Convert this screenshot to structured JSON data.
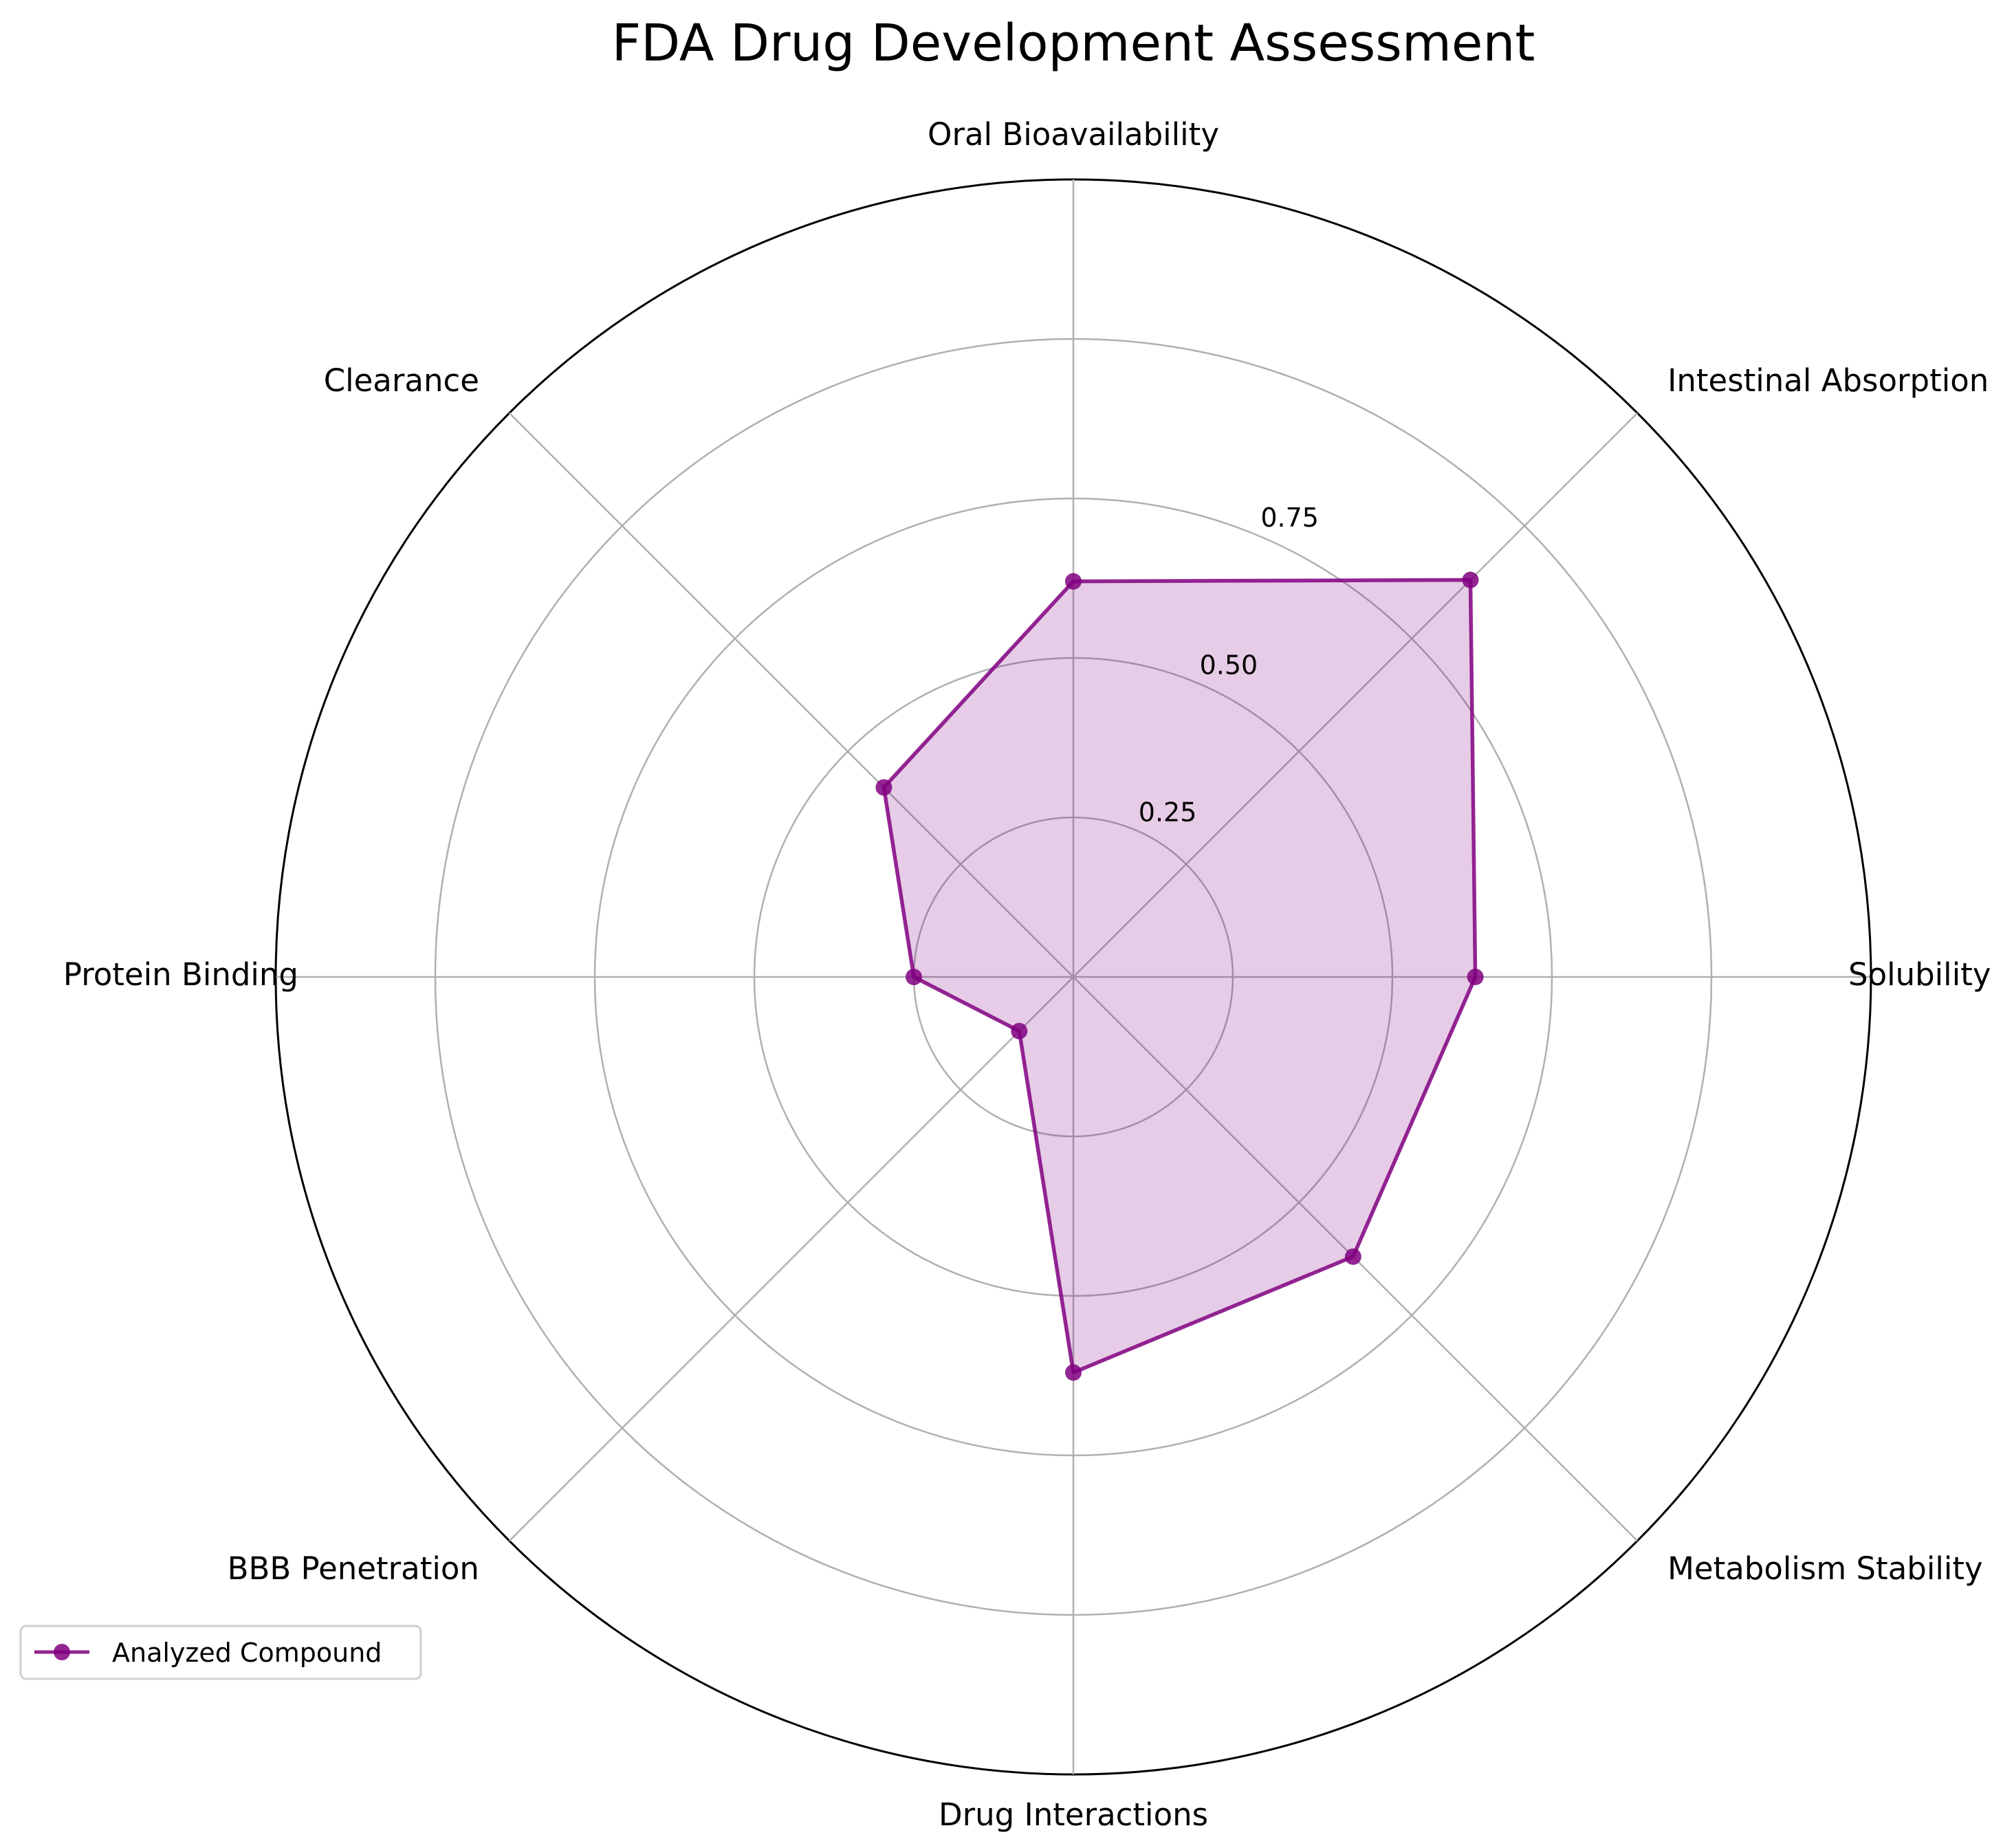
{
  "chart_data": {
    "type": "radar",
    "title": "FDA Drug Development Assessment",
    "categories": [
      "Oral Bioavailability",
      "Intestinal Absorption",
      "Solubility",
      "Metabolism Stability",
      "Drug Interactions",
      "BBB Penetration",
      "Protein Binding",
      "Clearance"
    ],
    "series": [
      {
        "name": "Analyzed Compound",
        "values": [
          0.62,
          0.88,
          0.63,
          0.62,
          0.62,
          0.12,
          0.25,
          0.42
        ],
        "color": "#800080"
      }
    ],
    "r_range": [
      0,
      1.25
    ],
    "r_ticks": [
      0.25,
      0.5,
      0.75,
      1.0,
      1.25
    ],
    "r_tick_labels": [
      "0.25",
      "0.50",
      "0.75",
      "",
      ""
    ],
    "grid": true,
    "legend_position": "lower-left"
  },
  "colors": {
    "series_line": "#800080",
    "series_fill": "#800080",
    "grid": "#b0b0b0",
    "outer_frame": "#000000"
  }
}
